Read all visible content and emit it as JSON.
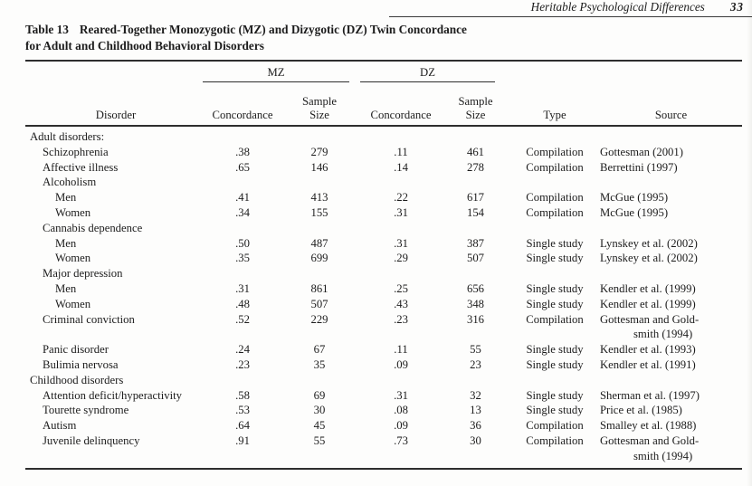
{
  "running_head": {
    "title": "Heritable Psychological Differences",
    "page_number": "33"
  },
  "caption": {
    "label": "Table 13",
    "line1_rest": "Reared-Together Monozygotic (MZ) and Dizygotic (DZ) Twin Concordance",
    "line2": "for Adult and Childhood Behavioral Disorders"
  },
  "table": {
    "spanners": {
      "mz": "MZ",
      "dz": "DZ"
    },
    "headers": {
      "disorder": "Disorder",
      "mz_concordance": "Concordance",
      "mz_sample_size": "Sample\nSize",
      "dz_concordance": "Concordance",
      "dz_sample_size": "Sample\nSize",
      "type": "Type",
      "source": "Source"
    },
    "rows": [
      {
        "label": "Adult disorders:",
        "indent": 0,
        "mz_concordance": "",
        "mz_sample_size": "",
        "dz_concordance": "",
        "dz_sample_size": "",
        "type": "",
        "source_lines": []
      },
      {
        "label": "Schizophrenia",
        "indent": 1,
        "mz_concordance": ".38",
        "mz_sample_size": "279",
        "dz_concordance": ".11",
        "dz_sample_size": "461",
        "type": "Compilation",
        "source_lines": [
          "Gottesman (2001)"
        ]
      },
      {
        "label": "Affective illness",
        "indent": 1,
        "mz_concordance": ".65",
        "mz_sample_size": "146",
        "dz_concordance": ".14",
        "dz_sample_size": "278",
        "type": "Compilation",
        "source_lines": [
          "Berrettini (1997)"
        ]
      },
      {
        "label": "Alcoholism",
        "indent": 1,
        "mz_concordance": "",
        "mz_sample_size": "",
        "dz_concordance": "",
        "dz_sample_size": "",
        "type": "",
        "source_lines": []
      },
      {
        "label": "Men",
        "indent": 2,
        "mz_concordance": ".41",
        "mz_sample_size": "413",
        "dz_concordance": ".22",
        "dz_sample_size": "617",
        "type": "Compilation",
        "source_lines": [
          "McGue (1995)"
        ]
      },
      {
        "label": "Women",
        "indent": 2,
        "mz_concordance": ".34",
        "mz_sample_size": "155",
        "dz_concordance": ".31",
        "dz_sample_size": "154",
        "type": "Compilation",
        "source_lines": [
          "McGue (1995)"
        ]
      },
      {
        "label": "Cannabis dependence",
        "indent": 1,
        "mz_concordance": "",
        "mz_sample_size": "",
        "dz_concordance": "",
        "dz_sample_size": "",
        "type": "",
        "source_lines": []
      },
      {
        "label": "Men",
        "indent": 2,
        "mz_concordance": ".50",
        "mz_sample_size": "487",
        "dz_concordance": ".31",
        "dz_sample_size": "387",
        "type": "Single study",
        "source_lines": [
          "Lynskey et al. (2002)"
        ]
      },
      {
        "label": "Women",
        "indent": 2,
        "mz_concordance": ".35",
        "mz_sample_size": "699",
        "dz_concordance": ".29",
        "dz_sample_size": "507",
        "type": "Single study",
        "source_lines": [
          "Lynskey et al. (2002)"
        ]
      },
      {
        "label": "Major depression",
        "indent": 1,
        "mz_concordance": "",
        "mz_sample_size": "",
        "dz_concordance": "",
        "dz_sample_size": "",
        "type": "",
        "source_lines": []
      },
      {
        "label": "Men",
        "indent": 2,
        "mz_concordance": ".31",
        "mz_sample_size": "861",
        "dz_concordance": ".25",
        "dz_sample_size": "656",
        "type": "Single study",
        "source_lines": [
          "Kendler et al. (1999)"
        ]
      },
      {
        "label": "Women",
        "indent": 2,
        "mz_concordance": ".48",
        "mz_sample_size": "507",
        "dz_concordance": ".43",
        "dz_sample_size": "348",
        "type": "Single study",
        "source_lines": [
          "Kendler et al. (1999)"
        ]
      },
      {
        "label": "Criminal conviction",
        "indent": 1,
        "mz_concordance": ".52",
        "mz_sample_size": "229",
        "dz_concordance": ".23",
        "dz_sample_size": "316",
        "type": "Compilation",
        "source_lines": [
          "Gottesman and Gold-",
          "smith (1994)"
        ]
      },
      {
        "label": "Panic disorder",
        "indent": 1,
        "mz_concordance": ".24",
        "mz_sample_size": "67",
        "dz_concordance": ".11",
        "dz_sample_size": "55",
        "type": "Single study",
        "source_lines": [
          "Kendler et al. (1993)"
        ]
      },
      {
        "label": "Bulimia nervosa",
        "indent": 1,
        "mz_concordance": ".23",
        "mz_sample_size": "35",
        "dz_concordance": ".09",
        "dz_sample_size": "23",
        "type": "Single study",
        "source_lines": [
          "Kendler et al. (1991)"
        ]
      },
      {
        "label": "Childhood disorders",
        "indent": 0,
        "mz_concordance": "",
        "mz_sample_size": "",
        "dz_concordance": "",
        "dz_sample_size": "",
        "type": "",
        "source_lines": []
      },
      {
        "label": "Attention deficit/hyperactivity",
        "indent": 1,
        "mz_concordance": ".58",
        "mz_sample_size": "69",
        "dz_concordance": ".31",
        "dz_sample_size": "32",
        "type": "Single study",
        "source_lines": [
          "Sherman et al. (1997)"
        ]
      },
      {
        "label": "Tourette syndrome",
        "indent": 1,
        "mz_concordance": ".53",
        "mz_sample_size": "30",
        "dz_concordance": ".08",
        "dz_sample_size": "13",
        "type": "Single study",
        "source_lines": [
          "Price et al. (1985)"
        ]
      },
      {
        "label": "Autism",
        "indent": 1,
        "mz_concordance": ".64",
        "mz_sample_size": "45",
        "dz_concordance": ".09",
        "dz_sample_size": "36",
        "type": "Compilation",
        "source_lines": [
          "Smalley et al. (1988)"
        ]
      },
      {
        "label": "Juvenile delinquency",
        "indent": 1,
        "mz_concordance": ".91",
        "mz_sample_size": "55",
        "dz_concordance": ".73",
        "dz_sample_size": "30",
        "type": "Compilation",
        "source_lines": [
          "Gottesman and Gold-",
          "smith (1994)"
        ]
      }
    ]
  },
  "colors": {
    "page_background": "#fdfdfc",
    "text": "#1c1c1c",
    "rule": "#2e2e2e"
  }
}
